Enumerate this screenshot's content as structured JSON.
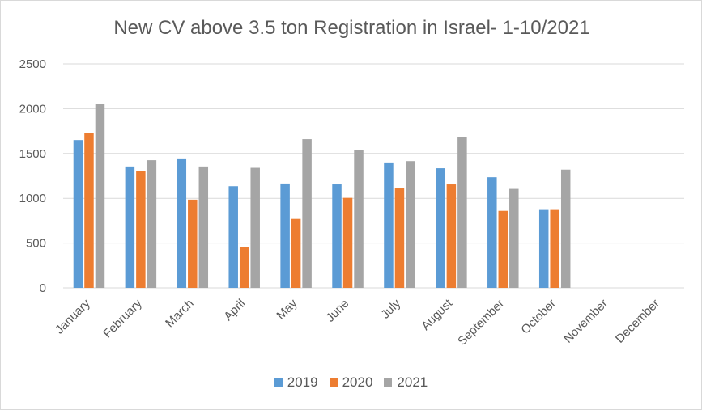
{
  "chart_data": {
    "type": "bar",
    "title": "New CV above 3.5 ton Registration in Israel- 1-10/2021",
    "categories": [
      "January",
      "February",
      "March",
      "April",
      "May",
      "June",
      "July",
      "August",
      "September",
      "October",
      "November",
      "December"
    ],
    "series": [
      {
        "name": "2019",
        "color": "#5b9bd5",
        "values": [
          1650,
          1355,
          1445,
          1135,
          1165,
          1155,
          1400,
          1335,
          1235,
          870,
          null,
          null
        ]
      },
      {
        "name": "2020",
        "color": "#ed7d31",
        "values": [
          1730,
          1305,
          985,
          455,
          770,
          1005,
          1110,
          1155,
          860,
          870,
          null,
          null
        ]
      },
      {
        "name": "2021",
        "color": "#a5a5a5",
        "values": [
          2055,
          1425,
          1355,
          1340,
          1660,
          1535,
          1415,
          1685,
          1105,
          1320,
          null,
          null
        ]
      }
    ],
    "yticks": [
      0,
      500,
      1000,
      1500,
      2000,
      2500
    ],
    "ylim": [
      0,
      2500
    ],
    "xlabel": "",
    "ylabel": "",
    "grid": true,
    "legend_position": "bottom"
  }
}
